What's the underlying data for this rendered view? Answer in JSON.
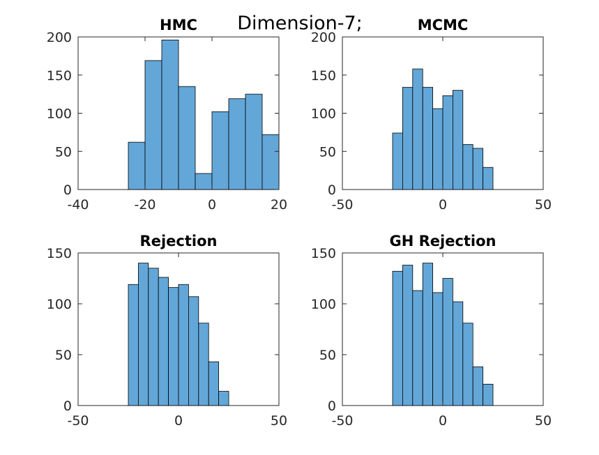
{
  "figure_title": "Dimension-7;",
  "chart_data": [
    {
      "type": "bar",
      "title": "HMC",
      "xlim": [
        -40,
        20
      ],
      "ylim": [
        0,
        200
      ],
      "xticks": [
        -40,
        -20,
        0,
        20
      ],
      "yticks": [
        0,
        50,
        100,
        150,
        200
      ],
      "bin_edges": [
        -25,
        -20,
        -15,
        -10,
        -5,
        0,
        5,
        10,
        15,
        20
      ],
      "values": [
        62,
        169,
        196,
        135,
        21,
        102,
        119,
        125,
        72
      ]
    },
    {
      "type": "bar",
      "title": "MCMC",
      "xlim": [
        -50,
        50
      ],
      "ylim": [
        0,
        200
      ],
      "xticks": [
        -50,
        0,
        50
      ],
      "yticks": [
        0,
        50,
        100,
        150,
        200
      ],
      "bin_edges": [
        -25,
        -20,
        -15,
        -10,
        -5,
        0,
        5,
        10,
        15,
        20,
        25
      ],
      "values": [
        74,
        134,
        158,
        134,
        106,
        123,
        130,
        59,
        54,
        29
      ]
    },
    {
      "type": "bar",
      "title": "Rejection",
      "xlim": [
        -50,
        50
      ],
      "ylim": [
        0,
        150
      ],
      "xticks": [
        -50,
        0,
        50
      ],
      "yticks": [
        0,
        50,
        100,
        150
      ],
      "bin_edges": [
        -25,
        -20,
        -15,
        -10,
        -5,
        0,
        5,
        10,
        15,
        20,
        25
      ],
      "values": [
        119,
        140,
        135,
        126,
        116,
        119,
        107,
        81,
        43,
        14
      ]
    },
    {
      "type": "bar",
      "title": "GH Rejection",
      "xlim": [
        -50,
        50
      ],
      "ylim": [
        0,
        150
      ],
      "xticks": [
        -50,
        0,
        50
      ],
      "yticks": [
        0,
        50,
        100,
        150
      ],
      "bin_edges": [
        -25,
        -20,
        -15,
        -10,
        -5,
        0,
        5,
        10,
        15,
        20,
        25
      ],
      "values": [
        132,
        138,
        113,
        140,
        111,
        125,
        102,
        81,
        38,
        21
      ]
    }
  ]
}
